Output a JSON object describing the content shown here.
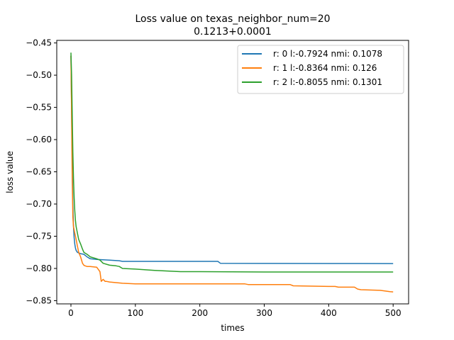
{
  "chart_data": {
    "type": "line",
    "title": "Loss value on texas_neighbor_num=20",
    "subtitle": "0.1213+0.0001",
    "xlabel": "times",
    "ylabel": "loss value",
    "xlim": [
      -22,
      524
    ],
    "ylim": [
      -0.855,
      -0.446
    ],
    "xticks": [
      0,
      100,
      200,
      300,
      400,
      500
    ],
    "xtick_labels": [
      "0",
      "100",
      "200",
      "300",
      "400",
      "500"
    ],
    "yticks": [
      -0.45,
      -0.5,
      -0.55,
      -0.6,
      -0.65,
      -0.7,
      -0.75,
      -0.8,
      -0.85
    ],
    "ytick_labels": [
      "−0.45",
      "−0.50",
      "−0.55",
      "−0.60",
      "−0.65",
      "−0.70",
      "−0.75",
      "−0.80",
      "−0.85"
    ],
    "grid": false,
    "legend_position": "top-right",
    "series": [
      {
        "name": "r: 0 l:-0.7924 nmi: 0.1078",
        "color": "#1f77b4",
        "x": [
          0,
          1,
          2,
          3,
          4,
          5,
          6,
          7,
          8,
          10,
          12,
          15,
          20,
          25,
          30,
          40,
          60,
          75,
          80,
          100,
          150,
          200,
          228,
          232,
          300,
          400,
          500
        ],
        "y": [
          -0.47,
          -0.55,
          -0.64,
          -0.7,
          -0.735,
          -0.752,
          -0.762,
          -0.768,
          -0.772,
          -0.775,
          -0.776,
          -0.777,
          -0.778,
          -0.782,
          -0.785,
          -0.786,
          -0.787,
          -0.788,
          -0.789,
          -0.789,
          -0.789,
          -0.789,
          -0.789,
          -0.792,
          -0.7922,
          -0.7923,
          -0.7924
        ]
      },
      {
        "name": "r: 1 l:-0.8364 nmi: 0.126",
        "color": "#ff7f0e",
        "x": [
          0,
          1,
          2,
          3,
          4,
          5,
          6,
          8,
          10,
          12,
          15,
          18,
          20,
          22,
          25,
          30,
          40,
          45,
          47,
          50,
          53,
          55,
          60,
          70,
          80,
          100,
          150,
          200,
          270,
          275,
          300,
          340,
          345,
          400,
          410,
          415,
          440,
          445,
          450,
          480,
          495,
          500
        ],
        "y": [
          -0.47,
          -0.56,
          -0.66,
          -0.72,
          -0.735,
          -0.74,
          -0.745,
          -0.755,
          -0.765,
          -0.775,
          -0.782,
          -0.792,
          -0.795,
          -0.796,
          -0.797,
          -0.797,
          -0.798,
          -0.805,
          -0.82,
          -0.817,
          -0.82,
          -0.82,
          -0.821,
          -0.822,
          -0.823,
          -0.824,
          -0.824,
          -0.824,
          -0.824,
          -0.825,
          -0.825,
          -0.825,
          -0.827,
          -0.828,
          -0.828,
          -0.829,
          -0.829,
          -0.832,
          -0.833,
          -0.834,
          -0.836,
          -0.8364
        ]
      },
      {
        "name": "r: 2 l:-0.8055 nmi: 0.1301",
        "color": "#2ca02c",
        "x": [
          0,
          1,
          2,
          3,
          4,
          5,
          6,
          7,
          8,
          10,
          12,
          15,
          18,
          20,
          25,
          30,
          40,
          45,
          50,
          60,
          70,
          75,
          80,
          100,
          130,
          150,
          170,
          200,
          300,
          400,
          500
        ],
        "y": [
          -0.465,
          -0.5,
          -0.56,
          -0.62,
          -0.66,
          -0.69,
          -0.71,
          -0.725,
          -0.735,
          -0.745,
          -0.755,
          -0.762,
          -0.77,
          -0.775,
          -0.778,
          -0.782,
          -0.785,
          -0.787,
          -0.792,
          -0.795,
          -0.796,
          -0.797,
          -0.8,
          -0.801,
          -0.803,
          -0.804,
          -0.805,
          -0.805,
          -0.8055,
          -0.8055,
          -0.8055
        ]
      }
    ]
  }
}
